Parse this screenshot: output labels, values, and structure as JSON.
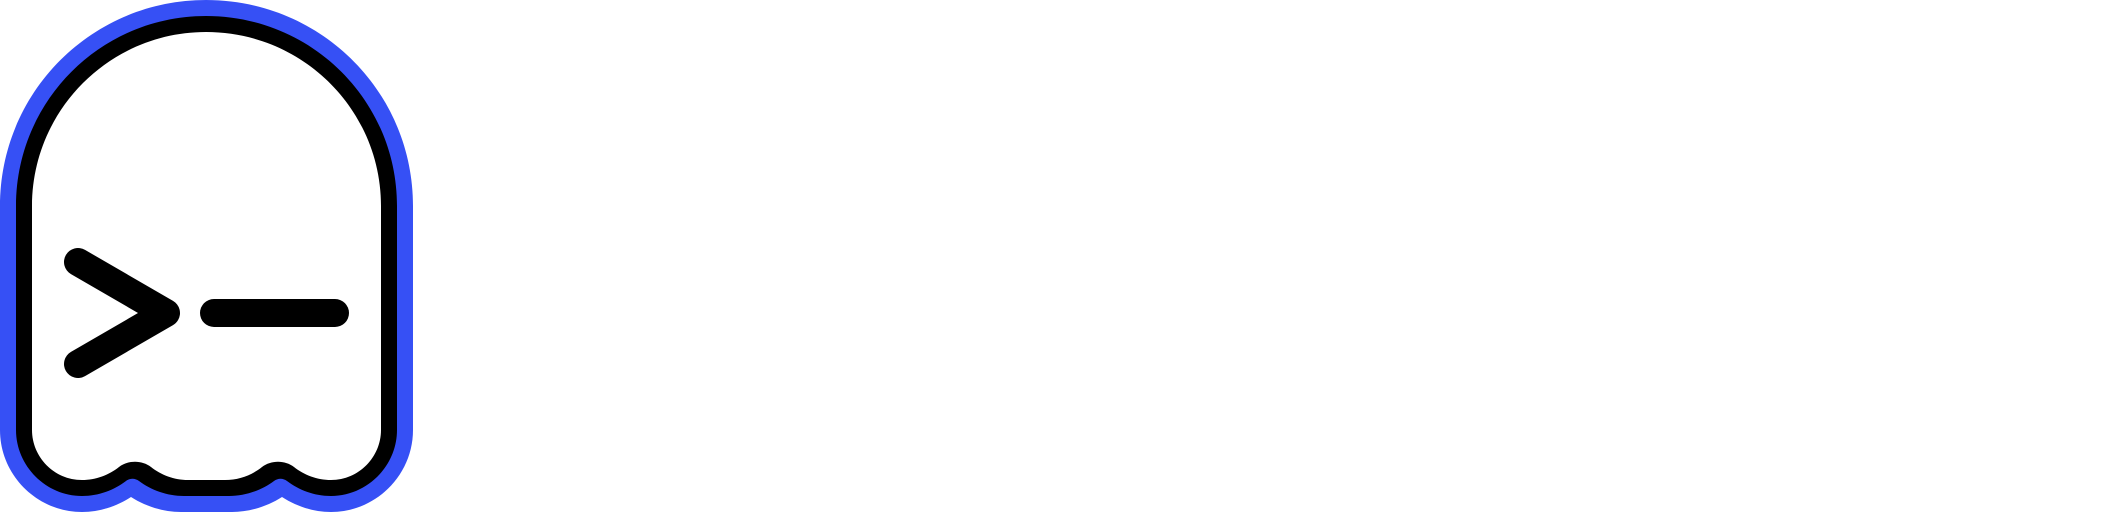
{
  "logo": {
    "icon": "ghost-terminal-icon",
    "colors": {
      "outline": "#3650f5",
      "stroke": "#000000",
      "fill": "#ffffff"
    }
  }
}
